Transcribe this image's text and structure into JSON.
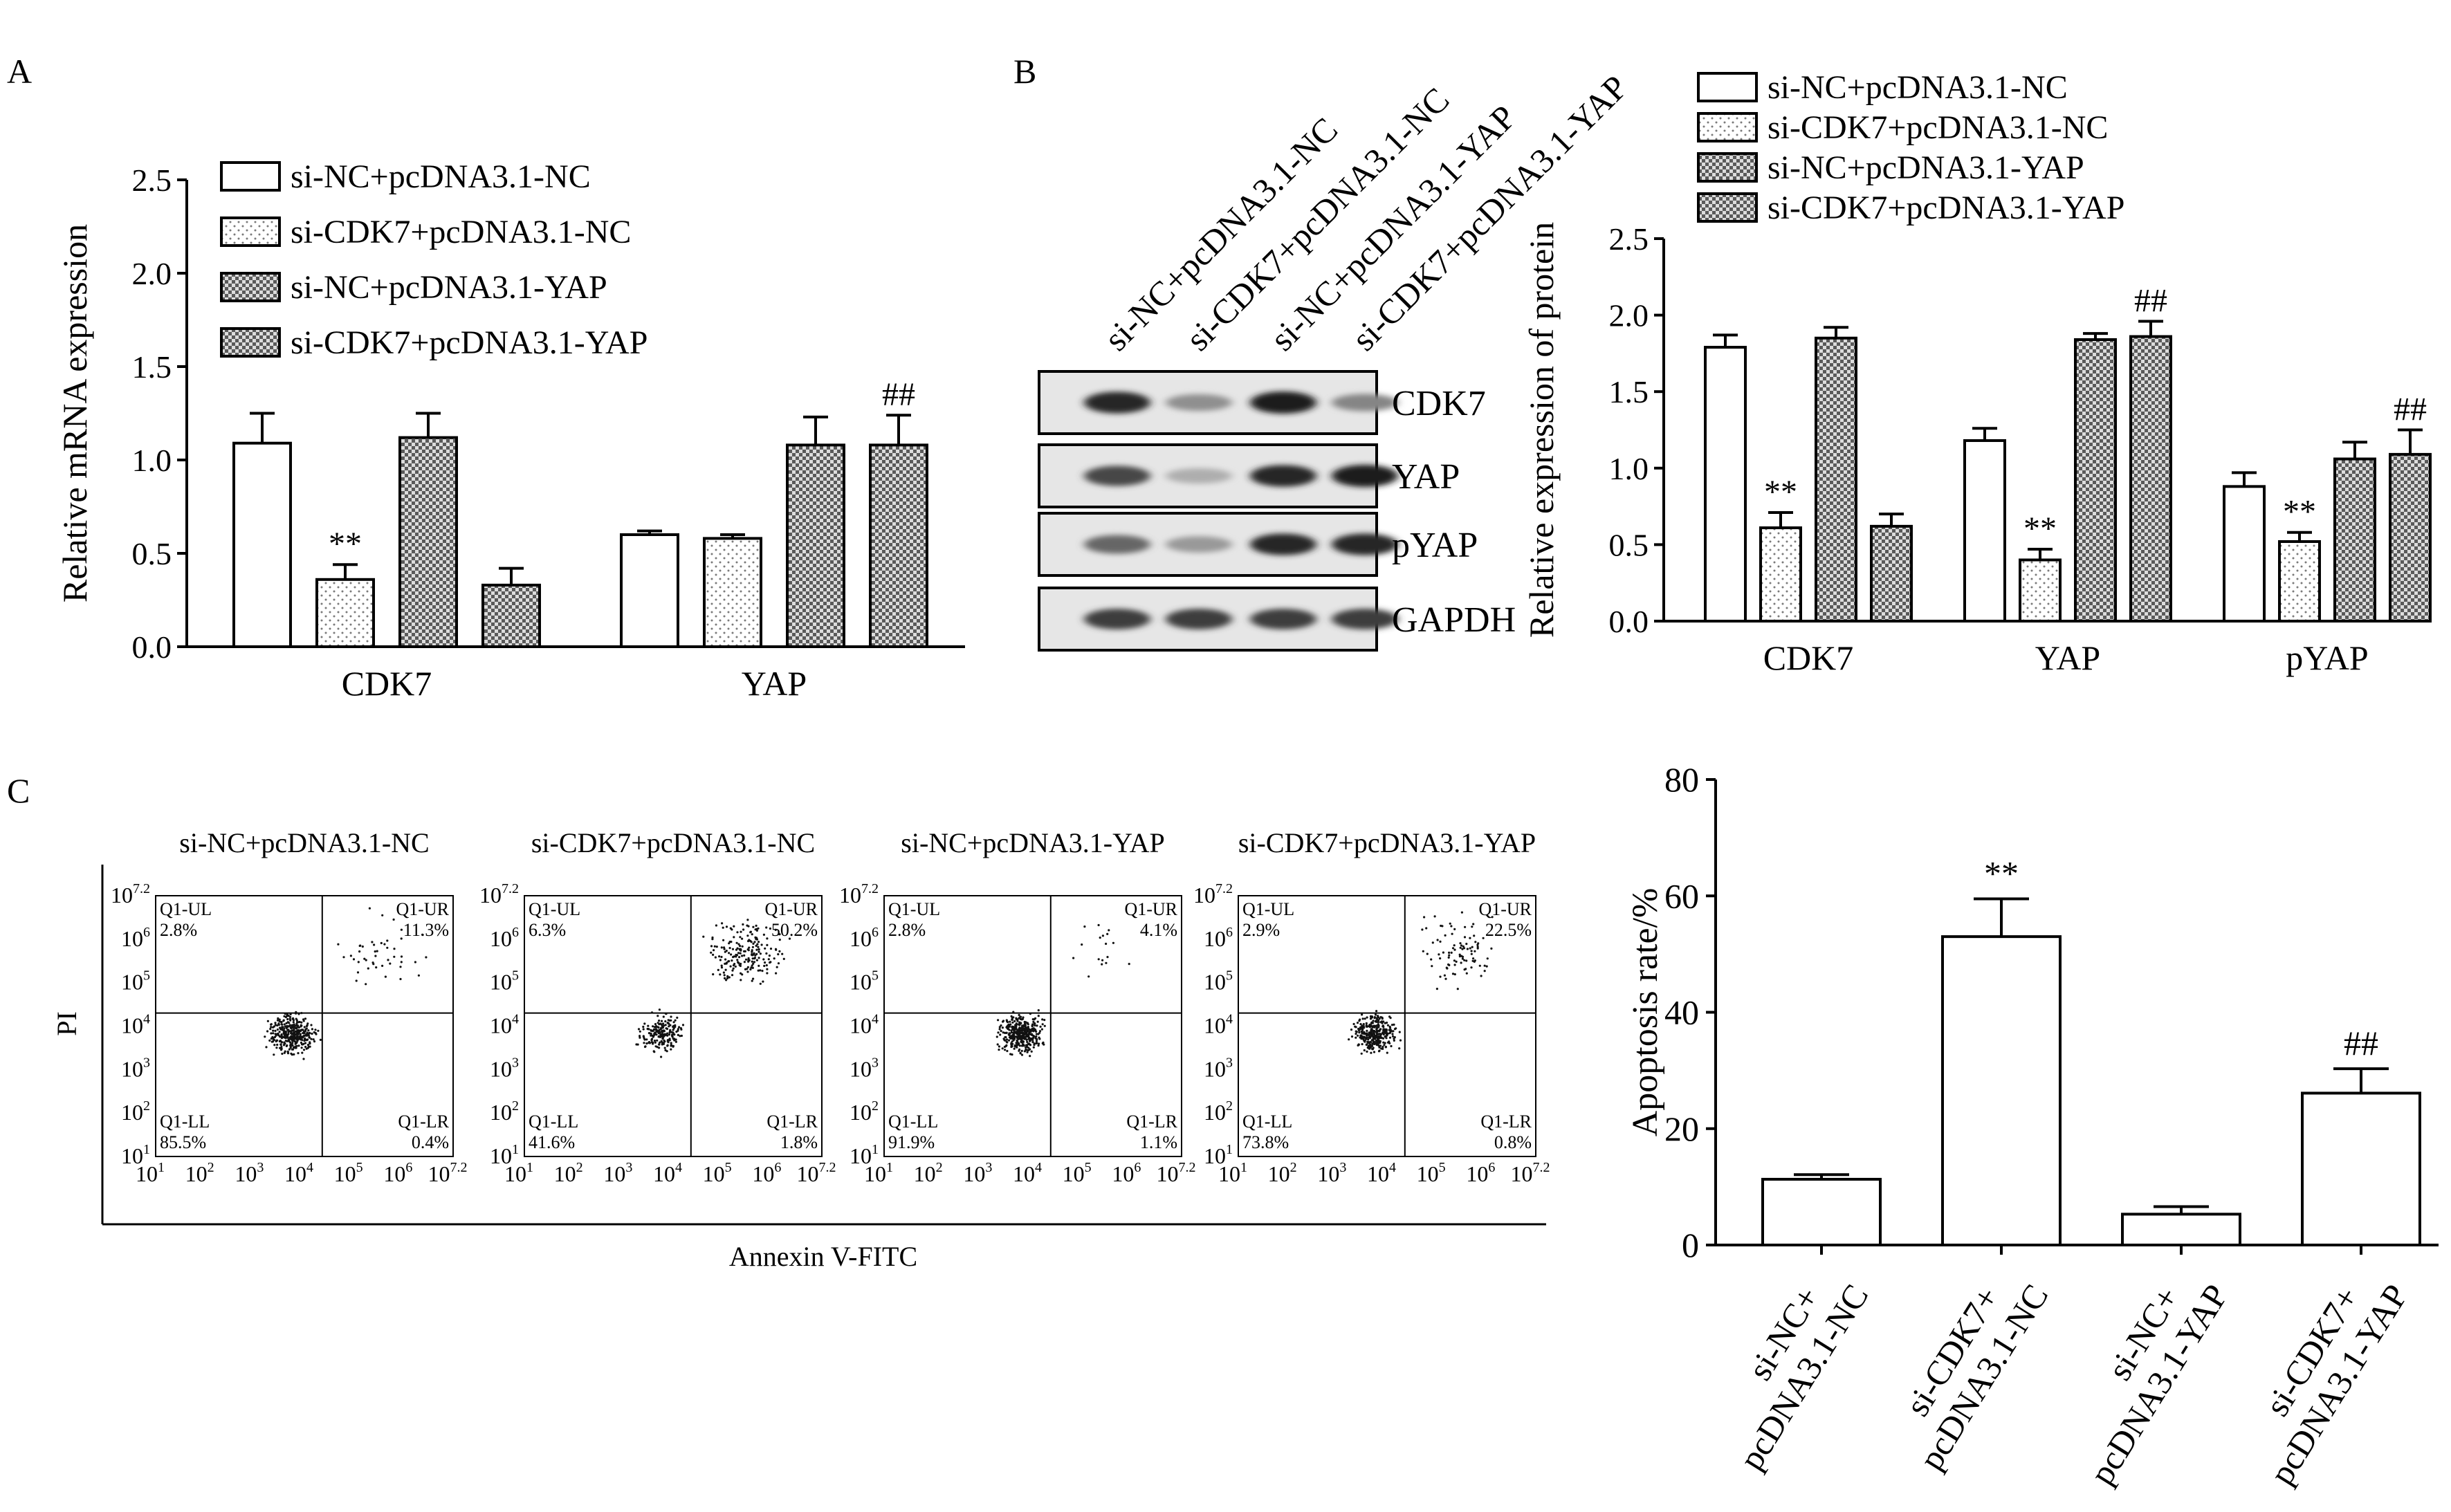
{
  "chart_data": [
    {
      "panel": "A",
      "type": "bar",
      "ylabel": "Relative mRNA expression",
      "ylim": [
        0,
        2.5
      ],
      "yticks": [
        "0.0",
        "0.5",
        "1.0",
        "1.5",
        "2.0",
        "2.5"
      ],
      "categories": [
        "CDK7",
        "YAP"
      ],
      "legend_position": "top-left",
      "series": [
        {
          "name": "si-NC+pcDNA3.1-NC",
          "pattern": "white",
          "values": [
            1.09,
            0.6
          ],
          "errors": [
            0.16,
            0.02
          ]
        },
        {
          "name": "si-CDK7+pcDNA3.1-NC",
          "pattern": "dots",
          "values": [
            0.36,
            0.58
          ],
          "errors": [
            0.08,
            0.02
          ]
        },
        {
          "name": "si-NC+pcDNA3.1-YAP",
          "pattern": "checker",
          "values": [
            1.12,
            1.08
          ],
          "errors": [
            0.13,
            0.15
          ]
        },
        {
          "name": "si-CDK7+pcDNA3.1-YAP",
          "pattern": "checker",
          "values": [
            0.33,
            1.08
          ],
          "errors": [
            0.09,
            0.16
          ]
        }
      ],
      "annotations": [
        {
          "category": 0,
          "series": 1,
          "text": "**"
        },
        {
          "category": 1,
          "series": 3,
          "text": "##"
        }
      ]
    },
    {
      "panel": "B",
      "type": "bar",
      "ylabel": "Relative expression of protein",
      "ylim": [
        0,
        2.5
      ],
      "yticks": [
        "0.0",
        "0.5",
        "1.0",
        "1.5",
        "2.0",
        "2.5"
      ],
      "categories": [
        "CDK7",
        "YAP",
        "pYAP"
      ],
      "legend_position": "top",
      "series": [
        {
          "name": "si-NC+pcDNA3.1-NC",
          "pattern": "white",
          "values": [
            1.79,
            1.18,
            0.88
          ],
          "errors": [
            0.08,
            0.08,
            0.09
          ]
        },
        {
          "name": "si-CDK7+pcDNA3.1-NC",
          "pattern": "dots",
          "values": [
            0.61,
            0.4,
            0.52
          ],
          "errors": [
            0.1,
            0.07,
            0.06
          ]
        },
        {
          "name": "si-NC+pcDNA3.1-YAP",
          "pattern": "checker",
          "values": [
            1.85,
            1.84,
            1.06
          ],
          "errors": [
            0.07,
            0.04,
            0.11
          ]
        },
        {
          "name": "si-CDK7+pcDNA3.1-YAP",
          "pattern": "checker",
          "values": [
            0.62,
            1.86,
            1.09
          ],
          "errors": [
            0.08,
            0.1,
            0.16
          ]
        }
      ],
      "annotations": [
        {
          "category": 0,
          "series": 1,
          "text": "**"
        },
        {
          "category": 1,
          "series": 1,
          "text": "**"
        },
        {
          "category": 1,
          "series": 3,
          "text": "##"
        },
        {
          "category": 2,
          "series": 1,
          "text": "**"
        },
        {
          "category": 2,
          "series": 3,
          "text": "##"
        }
      ]
    },
    {
      "panel": "C",
      "type": "bar",
      "ylabel": "Apoptosis rate/%",
      "ylim": [
        0,
        80
      ],
      "yticks": [
        "0",
        "20",
        "40",
        "60",
        "80"
      ],
      "categories": [
        [
          "si-NC+",
          "pcDNA3.1-NC"
        ],
        [
          "si-CDK7+",
          "pcDNA3.1-NC"
        ],
        [
          "si-NC+",
          "pcDNA3.1-YAP"
        ],
        [
          "si-CDK7+",
          "pcDNA3.1-YAP"
        ]
      ],
      "values": [
        11.3,
        53,
        5.3,
        26.1
      ],
      "errors": [
        0.8,
        6.5,
        1.3,
        4.2
      ],
      "annotations": [
        {
          "index": 1,
          "text": "**"
        },
        {
          "index": 3,
          "text": "##"
        }
      ]
    }
  ],
  "panel_labels": [
    "A",
    "B",
    "C"
  ],
  "western_blot": {
    "lanes": [
      "si-NC+pcDNA3.1-NC",
      "si-CDK7+pcDNA3.1-NC",
      "si-NC+pcDNA3.1-YAP",
      "si-CDK7+pcDNA3.1-YAP"
    ],
    "rows": [
      {
        "label": "CDK7",
        "intensity": [
          0.95,
          0.45,
          1.0,
          0.5
        ]
      },
      {
        "label": "YAP",
        "intensity": [
          0.8,
          0.3,
          0.95,
          1.0
        ]
      },
      {
        "label": "pYAP",
        "intensity": [
          0.65,
          0.4,
          0.95,
          0.95
        ]
      },
      {
        "label": "GAPDH",
        "intensity": [
          0.85,
          0.85,
          0.85,
          0.85
        ]
      }
    ]
  },
  "flow_cytometry": {
    "x_title": "Annexin V-FITC",
    "y_title": "PI",
    "x_tick_exponents": [
      "1",
      "2",
      "3",
      "4",
      "5",
      "6",
      "7.2"
    ],
    "y_tick_exponents": [
      "1",
      "2",
      "3",
      "4",
      "5",
      "6",
      "7.2"
    ],
    "plots": [
      {
        "title": "si-NC+pcDNA3.1-NC",
        "UL": "2.8%",
        "UR": "11.3%",
        "LL": "85.5%",
        "LR": "0.4%"
      },
      {
        "title": "si-CDK7+pcDNA3.1-NC",
        "UL": "6.3%",
        "UR": "50.2%",
        "LL": "41.6%",
        "LR": "1.8%"
      },
      {
        "title": "si-NC+pcDNA3.1-YAP",
        "UL": "2.8%",
        "UR": "4.1%",
        "LL": "91.9%",
        "LR": "1.1%"
      },
      {
        "title": "si-CDK7+pcDNA3.1-YAP",
        "UL": "2.9%",
        "UR": "22.5%",
        "LL": "73.8%",
        "LR": "0.8%"
      }
    ],
    "quadrant_labels": {
      "UL": "Q1-UL",
      "UR": "Q1-UR",
      "LL": "Q1-LL",
      "LR": "Q1-LR"
    }
  }
}
